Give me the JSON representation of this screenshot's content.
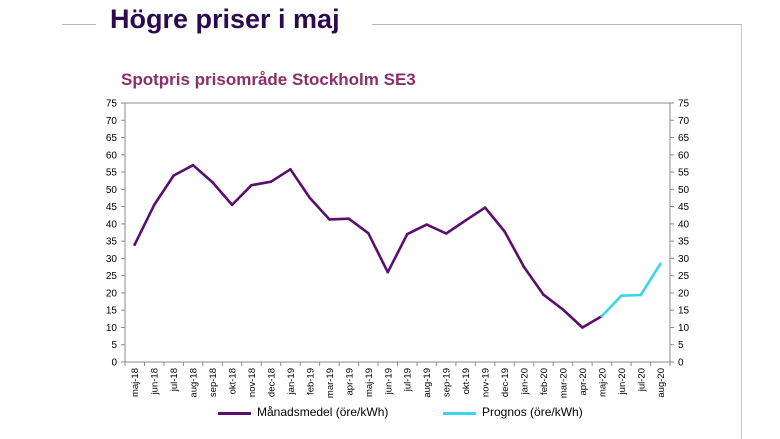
{
  "slide": {
    "title": "Högre priser i maj"
  },
  "chart_data": {
    "type": "line",
    "title": "Spotpris prisområde Stockholm SE3",
    "xlabel": "",
    "ylabel": "",
    "ylim": [
      0,
      75
    ],
    "yticks": [
      0,
      5,
      10,
      15,
      20,
      25,
      30,
      35,
      40,
      45,
      50,
      55,
      60,
      65,
      70,
      75
    ],
    "dual_y_axis": true,
    "grid": false,
    "legend_position": "bottom",
    "categories": [
      "maj-18",
      "jun-18",
      "jul-18",
      "aug-18",
      "sep-18",
      "okt-18",
      "nov-18",
      "dec-18",
      "jan-19",
      "feb-19",
      "mar-19",
      "apr-19",
      "maj-19",
      "jun-19",
      "jul-19",
      "aug-19",
      "sep-19",
      "okt-19",
      "nov-19",
      "dec-19",
      "jan-20",
      "feb-20",
      "mar-20",
      "apr-20",
      "maj-20",
      "jun-20",
      "jul-20",
      "aug-20"
    ],
    "series": [
      {
        "name": "Månadsmedel (öre/kWh)",
        "color": "#5b0e6e",
        "values": [
          34,
          45.5,
          54,
          57,
          52,
          45.5,
          51.2,
          52.2,
          55.8,
          47.5,
          41.3,
          41.5,
          37.3,
          26,
          37,
          39.8,
          37.2,
          41,
          44.7,
          37.8,
          27.5,
          19.5,
          15.2,
          10,
          13.3,
          null,
          null,
          null
        ]
      },
      {
        "name": "Prognos (öre/kWh)",
        "color": "#3dd4ea",
        "values": [
          null,
          null,
          null,
          null,
          null,
          null,
          null,
          null,
          null,
          null,
          null,
          null,
          null,
          null,
          null,
          null,
          null,
          null,
          null,
          null,
          null,
          null,
          null,
          null,
          13.3,
          19.2,
          19.4,
          28.4
        ]
      }
    ]
  }
}
